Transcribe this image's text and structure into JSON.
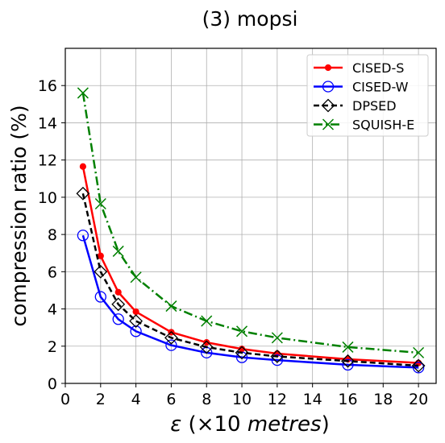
{
  "chart_data": {
    "type": "line",
    "title": "(3) mopsi",
    "xlabel_symbol": "ε",
    "xlabel_rest": " (×10 ",
    "xlabel_unit": "metres",
    "xlabel_close": ")",
    "ylabel": "compression ratio (%)",
    "xlim": [
      0,
      21
    ],
    "ylim": [
      0,
      18
    ],
    "xticks": [
      0,
      2,
      4,
      6,
      8,
      10,
      12,
      14,
      16,
      18,
      20
    ],
    "yticks": [
      0,
      2,
      4,
      6,
      8,
      10,
      12,
      14,
      16
    ],
    "grid": true,
    "legend_position": "top-right",
    "x": [
      1,
      2,
      3,
      4,
      6,
      8,
      10,
      12,
      16,
      20
    ],
    "series": [
      {
        "name": "CISED-S",
        "color": "#ff0000",
        "marker": "dot",
        "dash": "solid",
        "values": [
          11.65,
          6.85,
          4.9,
          3.85,
          2.75,
          2.2,
          1.85,
          1.6,
          1.3,
          1.1
        ]
      },
      {
        "name": "CISED-W",
        "color": "#0000ff",
        "marker": "open-circle",
        "dash": "solid",
        "values": [
          7.95,
          4.65,
          3.45,
          2.8,
          2.05,
          1.65,
          1.4,
          1.25,
          1.0,
          0.85
        ]
      },
      {
        "name": "DPSED",
        "color": "#000000",
        "marker": "open-diamond",
        "dash": "dashed",
        "values": [
          10.2,
          6.0,
          4.25,
          3.35,
          2.45,
          1.95,
          1.65,
          1.45,
          1.2,
          0.95
        ]
      },
      {
        "name": "SQUISH-E",
        "color": "#008000",
        "marker": "x",
        "dash": "dashdot",
        "values": [
          15.6,
          9.65,
          7.1,
          5.7,
          4.15,
          3.35,
          2.8,
          2.45,
          1.95,
          1.65
        ]
      }
    ]
  }
}
